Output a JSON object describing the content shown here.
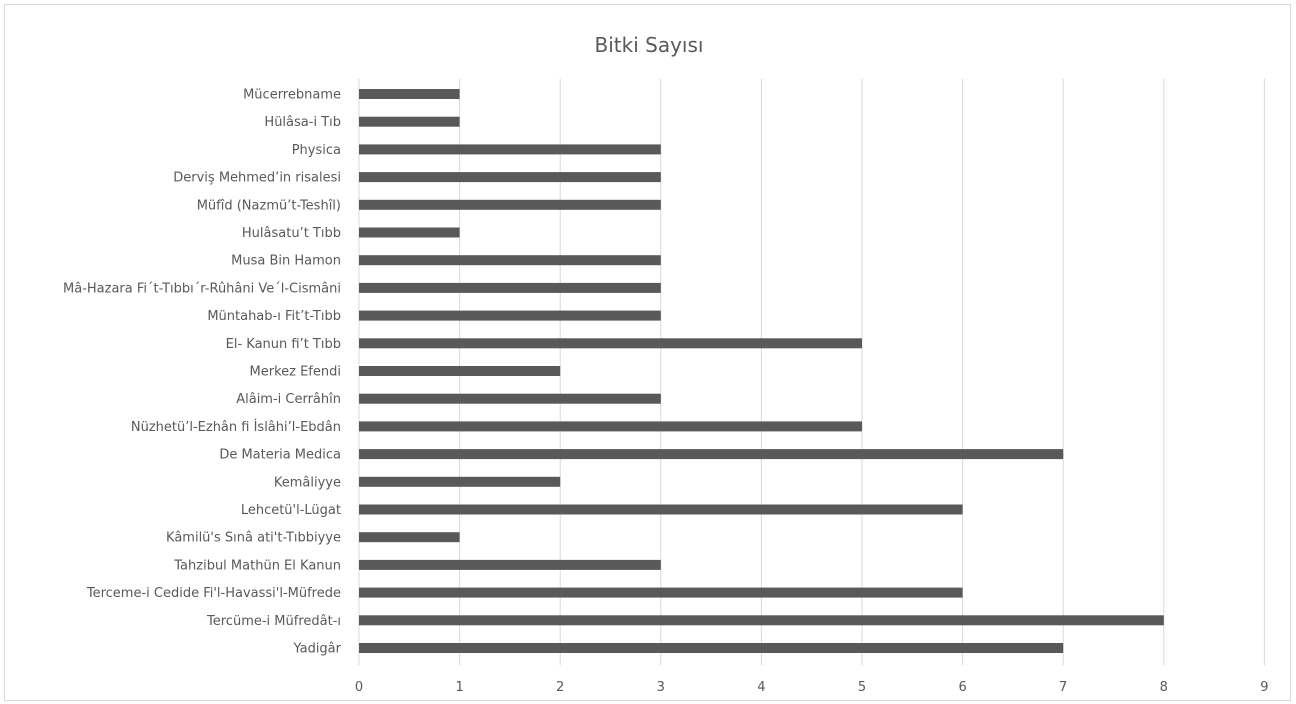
{
  "chart_data": {
    "type": "bar",
    "orientation": "horizontal",
    "title": "Bitki Sayısı",
    "xlabel": "",
    "ylabel": "",
    "categories": [
      "Mücerrebname",
      "Hülâsa-i Tıb",
      "Physica",
      "Derviş Mehmed’in risalesi",
      "Müfîd (Nazmü’t-Teshîl)",
      "Hulâsatu’t Tıbb",
      "Musa Bin Hamon",
      "Mâ-Hazara Fi΄t-Tıbbı΄r-Rûhâni Ve΄l-Cismâni",
      "Müntahab-ı Fit’t-Tıbb",
      "El- Kanun fi’t Tıbb",
      "Merkez Efendi",
      "Alâim-i Cerrâhîn",
      "Nüzhetü’l-Ezhân fi İslâhi’l-Ebdân",
      "De Materia Medica",
      "Kemâliyye",
      "Lehcetü'l-Lügat",
      "Kâmilü's Sınâ ati't-Tıbbiyye",
      "Tahzibul Mathün El Kanun",
      "Terceme-i Cedide Fi'l-Havassi'l-Müfrede",
      "Tercüme-i Müfredât-ı",
      "Yadigâr"
    ],
    "values": [
      1,
      1,
      3,
      3,
      3,
      1,
      3,
      3,
      3,
      5,
      2,
      3,
      5,
      7,
      2,
      6,
      1,
      3,
      6,
      8,
      7
    ],
    "xlim": [
      0,
      9
    ],
    "ticks": [
      0,
      1,
      2,
      3,
      4,
      5,
      6,
      7,
      8,
      9
    ],
    "grid": true,
    "legend": "none",
    "bar_color": "#595959"
  }
}
